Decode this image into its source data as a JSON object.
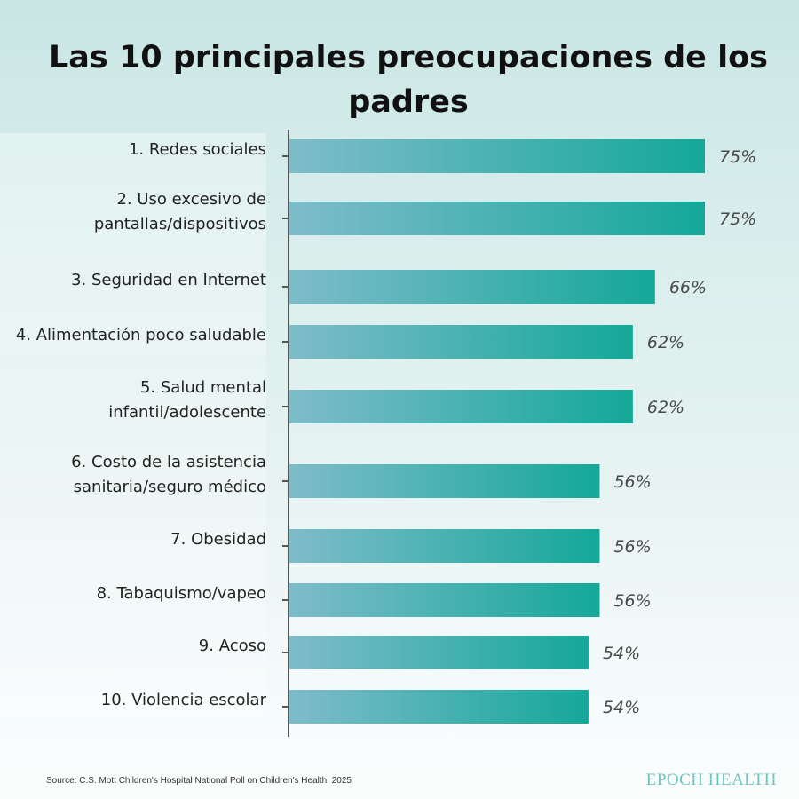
{
  "chart_data": {
    "type": "bar",
    "orientation": "horizontal",
    "title": "Las 10 principales preocupaciones de los padres",
    "categories": [
      "1. Redes sociales",
      "2. Uso excesivo de pantallas/dispositivos",
      "3. Seguridad en Internet",
      "4. Alimentación poco saludable",
      "5. Salud mental infantil/adolescente",
      "6. Costo de la asistencia sanitaria/seguro médico",
      "7. Obesidad",
      "8. Tabaquismo/vapeo",
      "9. Acoso",
      "10. Violencia escolar"
    ],
    "category_lines": [
      [
        "1. Redes sociales"
      ],
      [
        "2. Uso excesivo de",
        "pantallas/dispositivos"
      ],
      [
        "3. Seguridad en Internet"
      ],
      [
        "4. Alimentación poco saludable"
      ],
      [
        "5. Salud mental",
        "infantil/adolescente"
      ],
      [
        "6. Costo de la asistencia",
        "sanitaria/seguro médico"
      ],
      [
        "7. Obesidad"
      ],
      [
        "8. Tabaquismo/vapeo"
      ],
      [
        "9. Acoso"
      ],
      [
        "10. Violencia escolar"
      ]
    ],
    "values": [
      75,
      75,
      66,
      62,
      62,
      56,
      56,
      56,
      54,
      54
    ],
    "value_labels": [
      "75%",
      "75%",
      "66%",
      "62%",
      "62%",
      "56%",
      "56%",
      "56%",
      "54%",
      "54%"
    ],
    "unit": "%",
    "bar_gradient": [
      "#7fbcca",
      "#14a898"
    ],
    "axis_color": "#555555",
    "grid": false
  },
  "source": "Source: C.S. Mott Children's Hospital National Poll on Children's Health, 2025",
  "brand": "EPOCH HEALTH"
}
